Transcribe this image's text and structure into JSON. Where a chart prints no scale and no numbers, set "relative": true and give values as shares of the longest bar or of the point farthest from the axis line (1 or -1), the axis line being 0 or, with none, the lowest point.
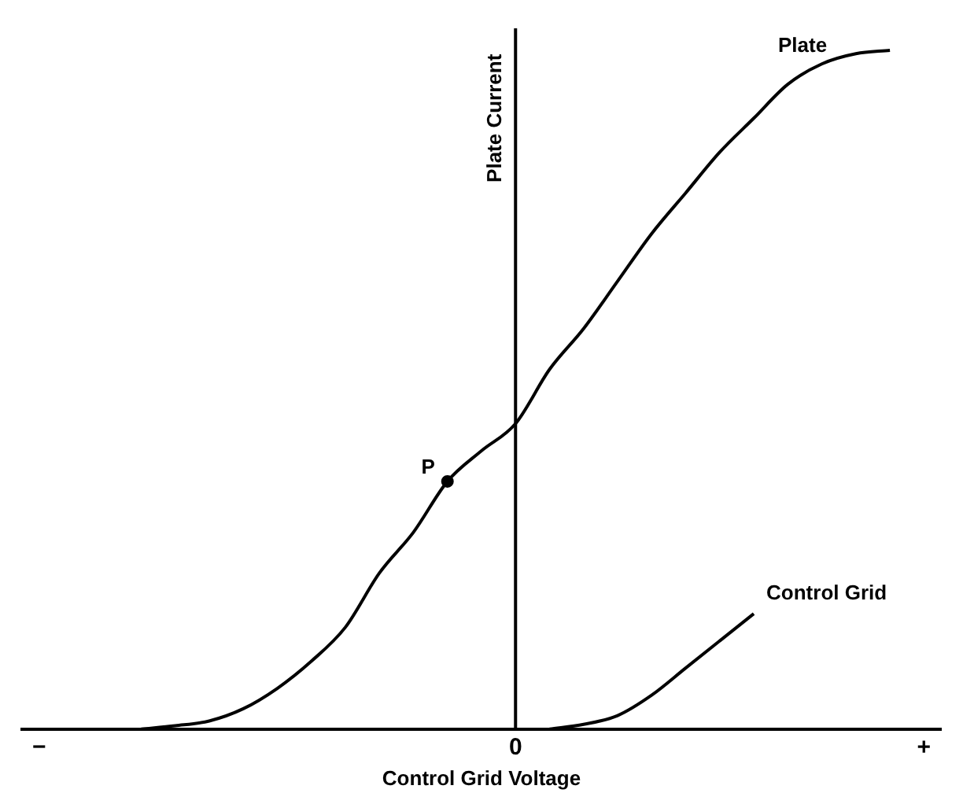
{
  "chart_data": {
    "type": "line",
    "relative": true,
    "xlabel": "Control Grid Voltage",
    "ylabel": "Plate Current",
    "marker": "none",
    "line_style": "solid",
    "categories": [
      "−",
      null,
      null,
      null,
      null,
      null,
      null,
      null,
      null,
      null,
      null,
      null,
      null,
      null,
      "0",
      null,
      null,
      null,
      null,
      null,
      null,
      null,
      null,
      null,
      null,
      null,
      "+"
    ],
    "series": [
      {
        "name": "Plate",
        "color": "#000000",
        "values": [
          null,
          null,
          null,
          0,
          0.005,
          0.012,
          0.03,
          0.06,
          0.1,
          0.15,
          0.23,
          0.29,
          0.365,
          0.41,
          0.45,
          0.53,
          0.59,
          0.66,
          0.73,
          0.79,
          0.85,
          0.9,
          0.95,
          0.98,
          0.995,
          1,
          null
        ]
      },
      {
        "name": "Control Grid",
        "color": "#000000",
        "values": [
          null,
          null,
          null,
          null,
          null,
          null,
          null,
          null,
          null,
          null,
          null,
          null,
          null,
          null,
          null,
          0,
          0.007,
          0.02,
          0.05,
          0.09,
          0.13,
          0.17,
          null,
          null,
          null,
          null,
          null
        ]
      },
      {
        "name": "P",
        "type": "scatter",
        "marker": "circle",
        "color": "#000000",
        "values": [
          null,
          null,
          null,
          null,
          null,
          null,
          null,
          null,
          null,
          null,
          null,
          null,
          0.365,
          null,
          null,
          null,
          null,
          null,
          null,
          null,
          null,
          null,
          null,
          null,
          null,
          null,
          null
        ]
      }
    ],
    "ref_lines": [
      {
        "axis": "x",
        "value": "0"
      }
    ]
  }
}
